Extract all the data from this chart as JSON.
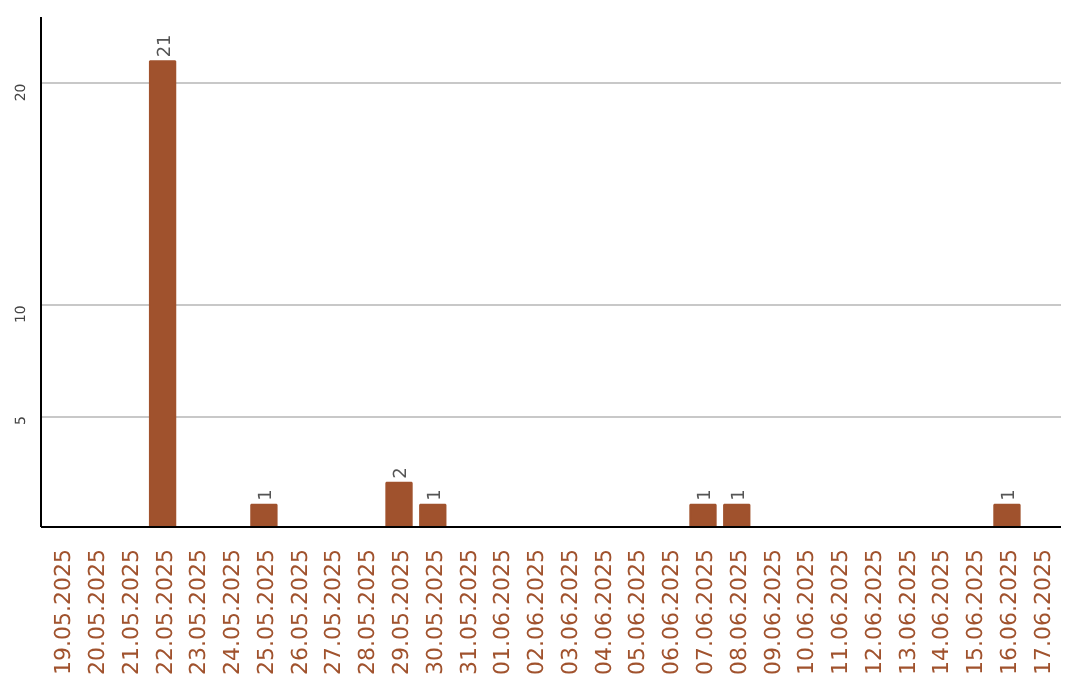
{
  "chart_data": {
    "type": "bar",
    "categories": [
      "19.05.2025",
      "20.05.2025",
      "21.05.2025",
      "22.05.2025",
      "23.05.2025",
      "24.05.2025",
      "25.05.2025",
      "26.05.2025",
      "27.05.2025",
      "28.05.2025",
      "29.05.2025",
      "30.05.2025",
      "31.05.2025",
      "01.06.2025",
      "02.06.2025",
      "03.06.2025",
      "04.06.2025",
      "05.06.2025",
      "06.06.2025",
      "07.06.2025",
      "08.06.2025",
      "09.06.2025",
      "10.06.2025",
      "11.06.2025",
      "12.06.2025",
      "13.06.2025",
      "14.06.2025",
      "15.06.2025",
      "16.06.2025",
      "17.06.2025"
    ],
    "values": [
      0,
      0,
      0,
      21,
      0,
      0,
      1,
      0,
      0,
      0,
      2,
      1,
      0,
      0,
      0,
      0,
      0,
      0,
      0,
      1,
      1,
      0,
      0,
      0,
      0,
      0,
      0,
      0,
      1,
      0
    ],
    "value_labels": [
      null,
      null,
      null,
      "21",
      null,
      null,
      "1",
      null,
      null,
      null,
      "2",
      "1",
      null,
      null,
      null,
      null,
      null,
      null,
      null,
      "1",
      "1",
      null,
      null,
      null,
      null,
      null,
      null,
      null,
      "1",
      null
    ],
    "color": "#a0522d",
    "ylim": [
      0,
      23
    ],
    "yticks": [
      5,
      10,
      20
    ],
    "grid": "y"
  }
}
